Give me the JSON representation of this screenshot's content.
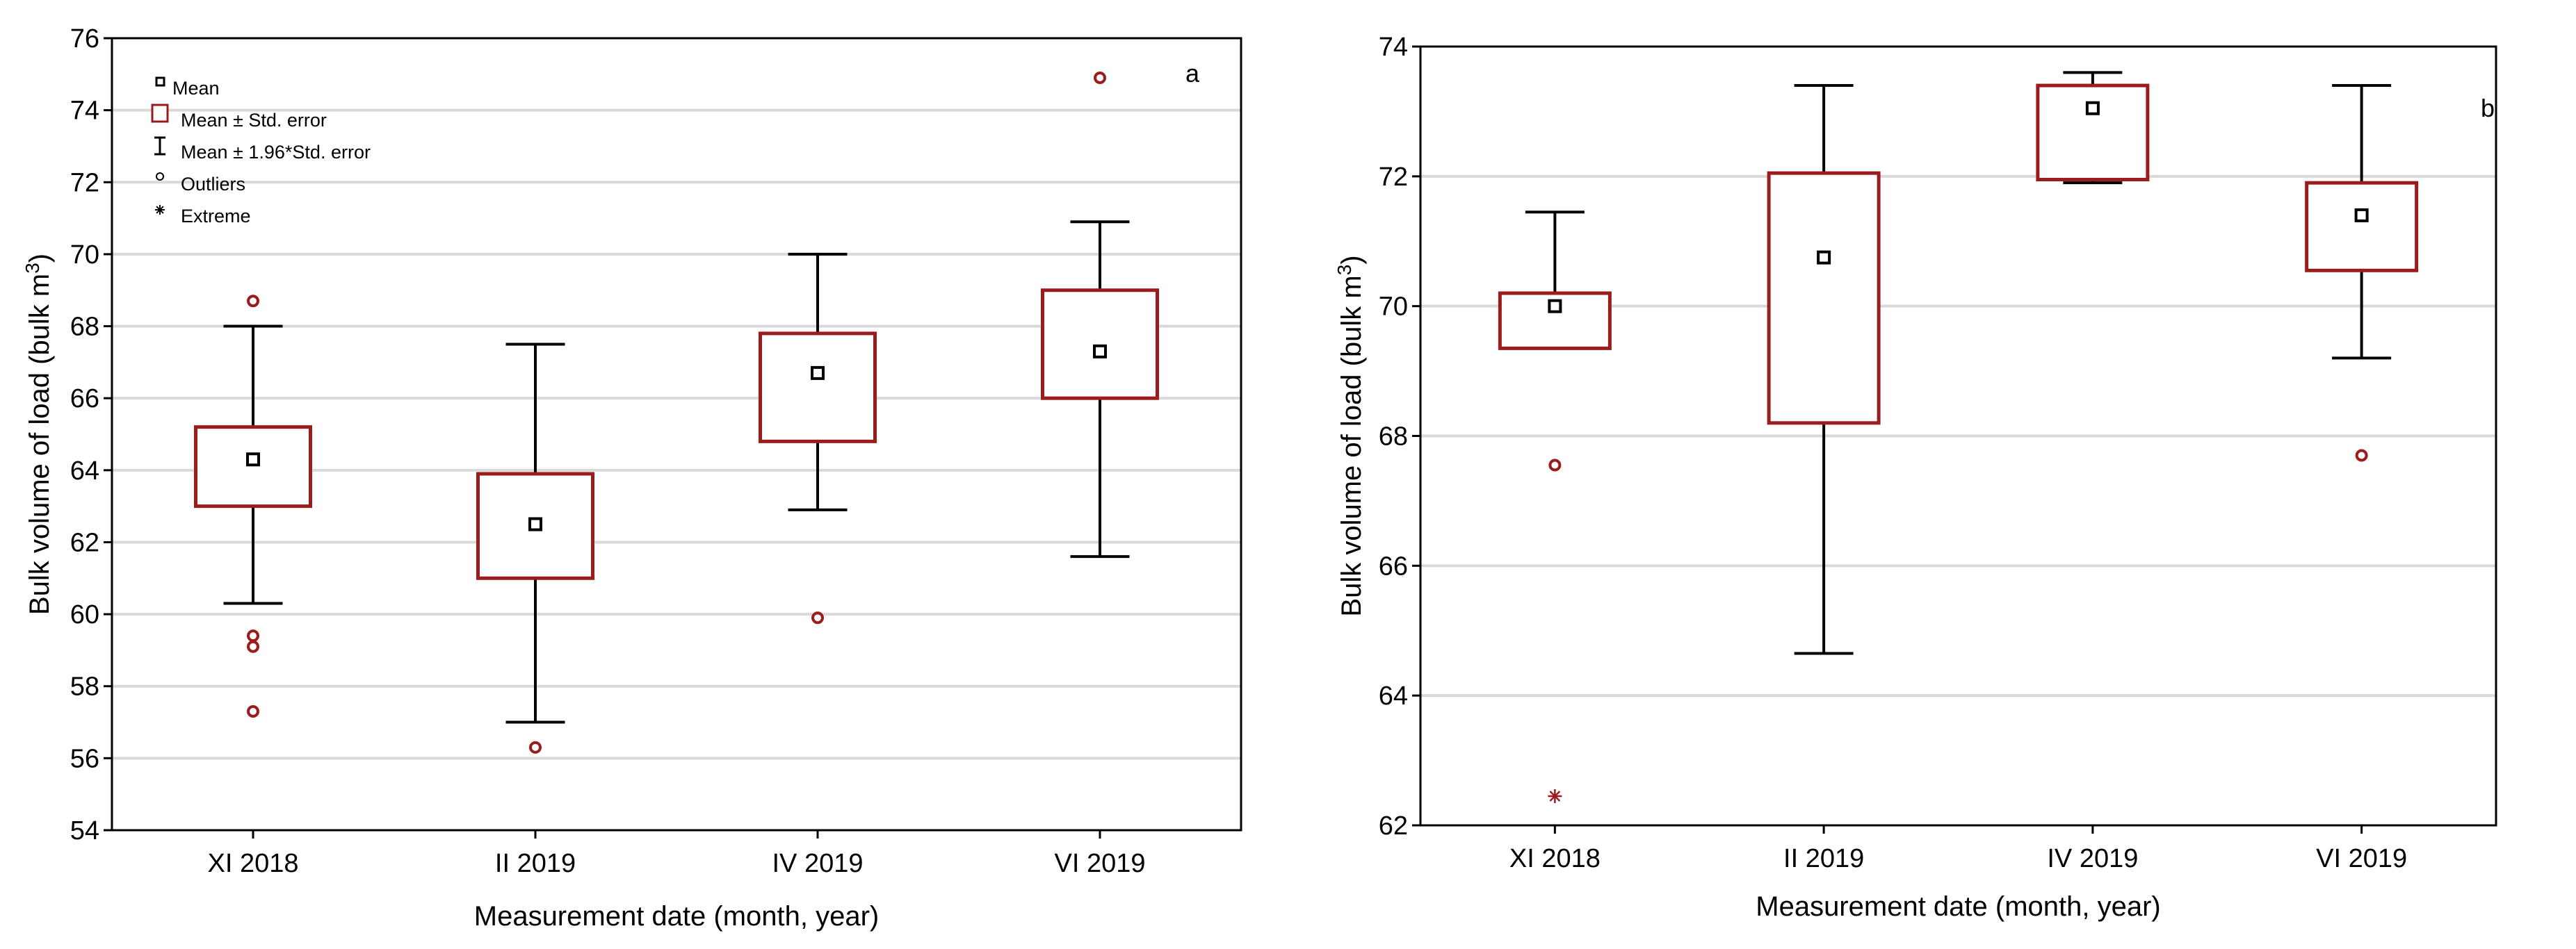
{
  "chart_data": [
    {
      "type": "box",
      "panel_label": "a",
      "categories": [
        "XI 2018",
        "II 2019",
        "IV 2019",
        "VI 2019"
      ],
      "xlabel": "Measurement date (month, year)",
      "ylabel_prefix": "Bulk volume of load (bulk m",
      "ylabel_sup": "3",
      "ylabel_suffix": ")",
      "ylim": [
        54,
        76
      ],
      "yticks": [
        54,
        56,
        58,
        60,
        62,
        64,
        66,
        68,
        70,
        72,
        74,
        76
      ],
      "grid": true,
      "series": [
        {
          "category": "XI 2018",
          "mean": 64.3,
          "se_low": 63.0,
          "se_high": 65.2,
          "whisker_low": 60.3,
          "whisker_high": 68.0,
          "outliers": [
            68.7,
            59.4,
            59.1,
            57.3
          ],
          "extremes": []
        },
        {
          "category": "II 2019",
          "mean": 62.5,
          "se_low": 61.0,
          "se_high": 63.9,
          "whisker_low": 57.0,
          "whisker_high": 67.5,
          "outliers": [
            56.3
          ],
          "extremes": []
        },
        {
          "category": "IV 2019",
          "mean": 66.7,
          "se_low": 64.8,
          "se_high": 67.8,
          "whisker_low": 62.9,
          "whisker_high": 70.0,
          "outliers": [
            59.9
          ],
          "extremes": []
        },
        {
          "category": "VI 2019",
          "mean": 67.3,
          "se_low": 66.0,
          "se_high": 69.0,
          "whisker_low": 61.6,
          "whisker_high": 70.9,
          "outliers": [
            74.9
          ],
          "extremes": []
        }
      ],
      "legend": {
        "placement": "top-left",
        "items": [
          "Mean",
          "Mean ± Std. error",
          "Mean ±  1.96*Std. error",
          "Outliers",
          "Extreme"
        ]
      }
    },
    {
      "type": "box",
      "panel_label": "b",
      "categories": [
        "XI 2018",
        "II 2019",
        "IV 2019",
        "VI 2019"
      ],
      "xlabel": "Measurement date (month, year)",
      "ylabel_prefix": "Bulk volume of load (bulk m",
      "ylabel_sup": "3",
      "ylabel_suffix": ")",
      "ylim": [
        62,
        74
      ],
      "yticks": [
        62,
        64,
        66,
        68,
        70,
        72,
        74
      ],
      "grid": true,
      "series": [
        {
          "category": "XI 2018",
          "mean": 70.0,
          "se_low": 69.35,
          "se_high": 70.2,
          "whisker_low": 69.35,
          "whisker_high": 71.45,
          "outliers": [
            67.55
          ],
          "extremes": [
            62.45
          ]
        },
        {
          "category": "II 2019",
          "mean": 70.75,
          "se_low": 68.2,
          "se_high": 72.05,
          "whisker_low": 64.65,
          "whisker_high": 73.4,
          "outliers": [],
          "extremes": []
        },
        {
          "category": "IV 2019",
          "mean": 73.05,
          "se_low": 71.95,
          "se_high": 73.4,
          "whisker_low": 71.9,
          "whisker_high": 73.6,
          "outliers": [],
          "extremes": []
        },
        {
          "category": "VI 2019",
          "mean": 71.4,
          "se_low": 70.55,
          "se_high": 71.9,
          "whisker_low": 69.2,
          "whisker_high": 73.4,
          "outliers": [
            67.7
          ],
          "extremes": []
        }
      ]
    }
  ],
  "colors": {
    "box": "#9b1c1c",
    "marker": "#9b1c1c",
    "whisker": "#000000",
    "grid": "#d9d9d9",
    "frame": "#000000"
  }
}
